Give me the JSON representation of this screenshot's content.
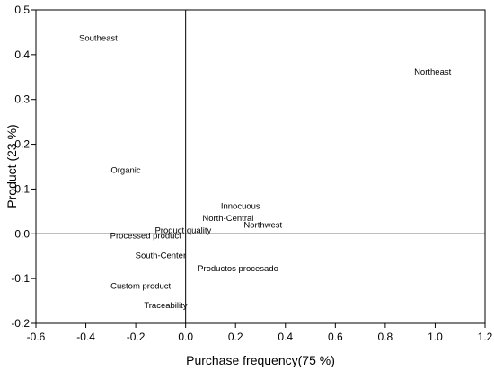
{
  "chart_data": {
    "type": "scatter",
    "title": "",
    "xlabel": "Purchase frequency(75 %)",
    "ylabel": "Product (23 %)",
    "xlim": [
      -0.6,
      1.2
    ],
    "ylim": [
      -0.2,
      0.5
    ],
    "x_ticks": [
      "-0.6",
      "-0.4",
      "-0.2",
      "0.0",
      "0.2",
      "0.4",
      "0.6",
      "0.8",
      "1.0",
      "1.2"
    ],
    "y_ticks": [
      "-0.2",
      "-0.1",
      "0.0",
      "0.1",
      "0.2",
      "0.3",
      "0.4",
      "0.5"
    ],
    "grid": false,
    "reference_lines": {
      "x": 0,
      "y": 0
    },
    "points": [
      {
        "label": "Southeast",
        "x": -0.35,
        "y": 0.437
      },
      {
        "label": "Northeast",
        "x": 0.99,
        "y": 0.362
      },
      {
        "label": "Organic",
        "x": -0.24,
        "y": 0.142
      },
      {
        "label": "Innocuous",
        "x": 0.22,
        "y": 0.062
      },
      {
        "label": "North-Central",
        "x": 0.17,
        "y": 0.035
      },
      {
        "label": "Northwest",
        "x": 0.31,
        "y": 0.02
      },
      {
        "label": "Product quality",
        "x": -0.01,
        "y": 0.008
      },
      {
        "label": "Processed product",
        "x": -0.16,
        "y": -0.004
      },
      {
        "label": "South-Center",
        "x": -0.1,
        "y": -0.049
      },
      {
        "label": "Productos procesado",
        "x": 0.21,
        "y": -0.078
      },
      {
        "label": "Custom product",
        "x": -0.18,
        "y": -0.117
      },
      {
        "label": "Traceability",
        "x": -0.08,
        "y": -0.16
      }
    ]
  }
}
